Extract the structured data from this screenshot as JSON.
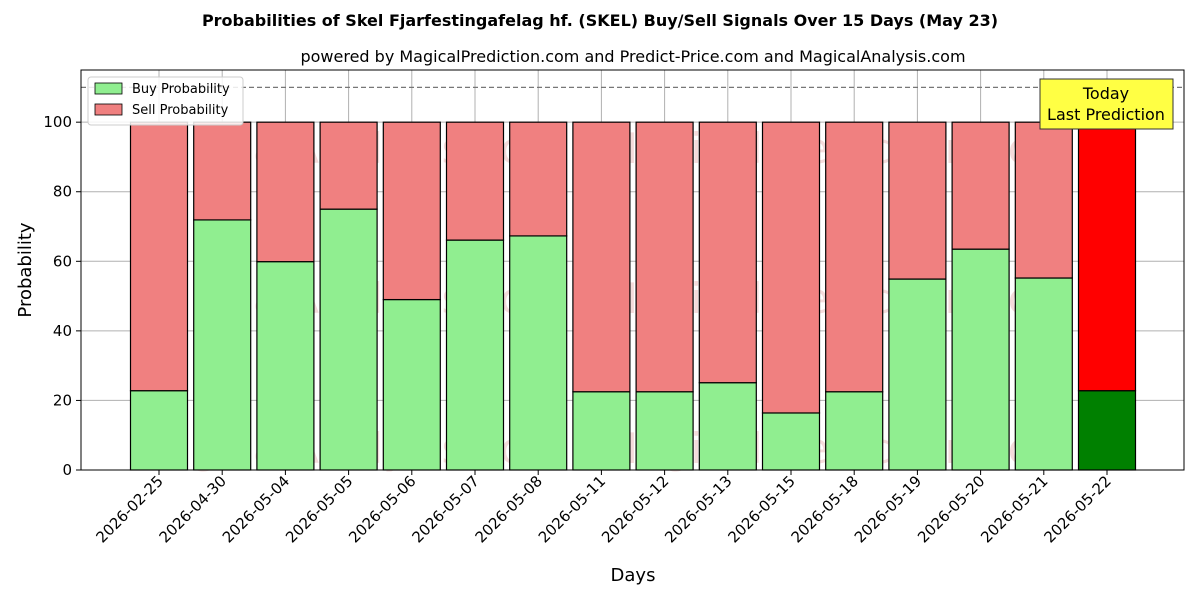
{
  "chart_data": {
    "type": "bar",
    "stacked": true,
    "title": "Probabilities of Skel Fjarfestingafelag hf. (SKEL) Buy/Sell Signals Over 15 Days (May 23)",
    "subtitle": "powered by MagicalPrediction.com and Predict-Price.com and MagicalAnalysis.com",
    "xlabel": "Days",
    "ylabel": "Probability",
    "ylim": [
      0,
      115
    ],
    "yticks": [
      0,
      20,
      40,
      60,
      80,
      100
    ],
    "grid": true,
    "legend_position": "top-left",
    "reference_line": 110,
    "categories": [
      "2026-02-25",
      "2026-04-30",
      "2026-05-04",
      "2026-05-05",
      "2026-05-06",
      "2026-05-07",
      "2026-05-08",
      "2026-05-11",
      "2026-05-12",
      "2026-05-13",
      "2026-05-15",
      "2026-05-18",
      "2026-05-19",
      "2026-05-20",
      "2026-05-21",
      "2026-05-22"
    ],
    "series": [
      {
        "name": "Buy Probability",
        "color": "#90ee90",
        "highlight_color": "#008000",
        "values": [
          22.8,
          71.9,
          59.9,
          75.0,
          49.0,
          66.1,
          67.3,
          22.5,
          22.5,
          25.1,
          16.4,
          22.5,
          54.9,
          63.5,
          55.2,
          22.8
        ]
      },
      {
        "name": "Sell Probability",
        "color": "#f08080",
        "highlight_color": "#ff0000",
        "values": [
          77.2,
          28.1,
          40.1,
          25.0,
          51.0,
          33.9,
          32.7,
          77.5,
          77.5,
          74.9,
          83.6,
          77.5,
          45.1,
          36.5,
          44.8,
          77.2
        ]
      }
    ],
    "annotation": {
      "line1": "Today",
      "line2": "Last Prediction",
      "color": "#ffff44"
    },
    "watermarks": [
      "MagicalAnalysis.com",
      "MagicalPrediction.com"
    ]
  }
}
